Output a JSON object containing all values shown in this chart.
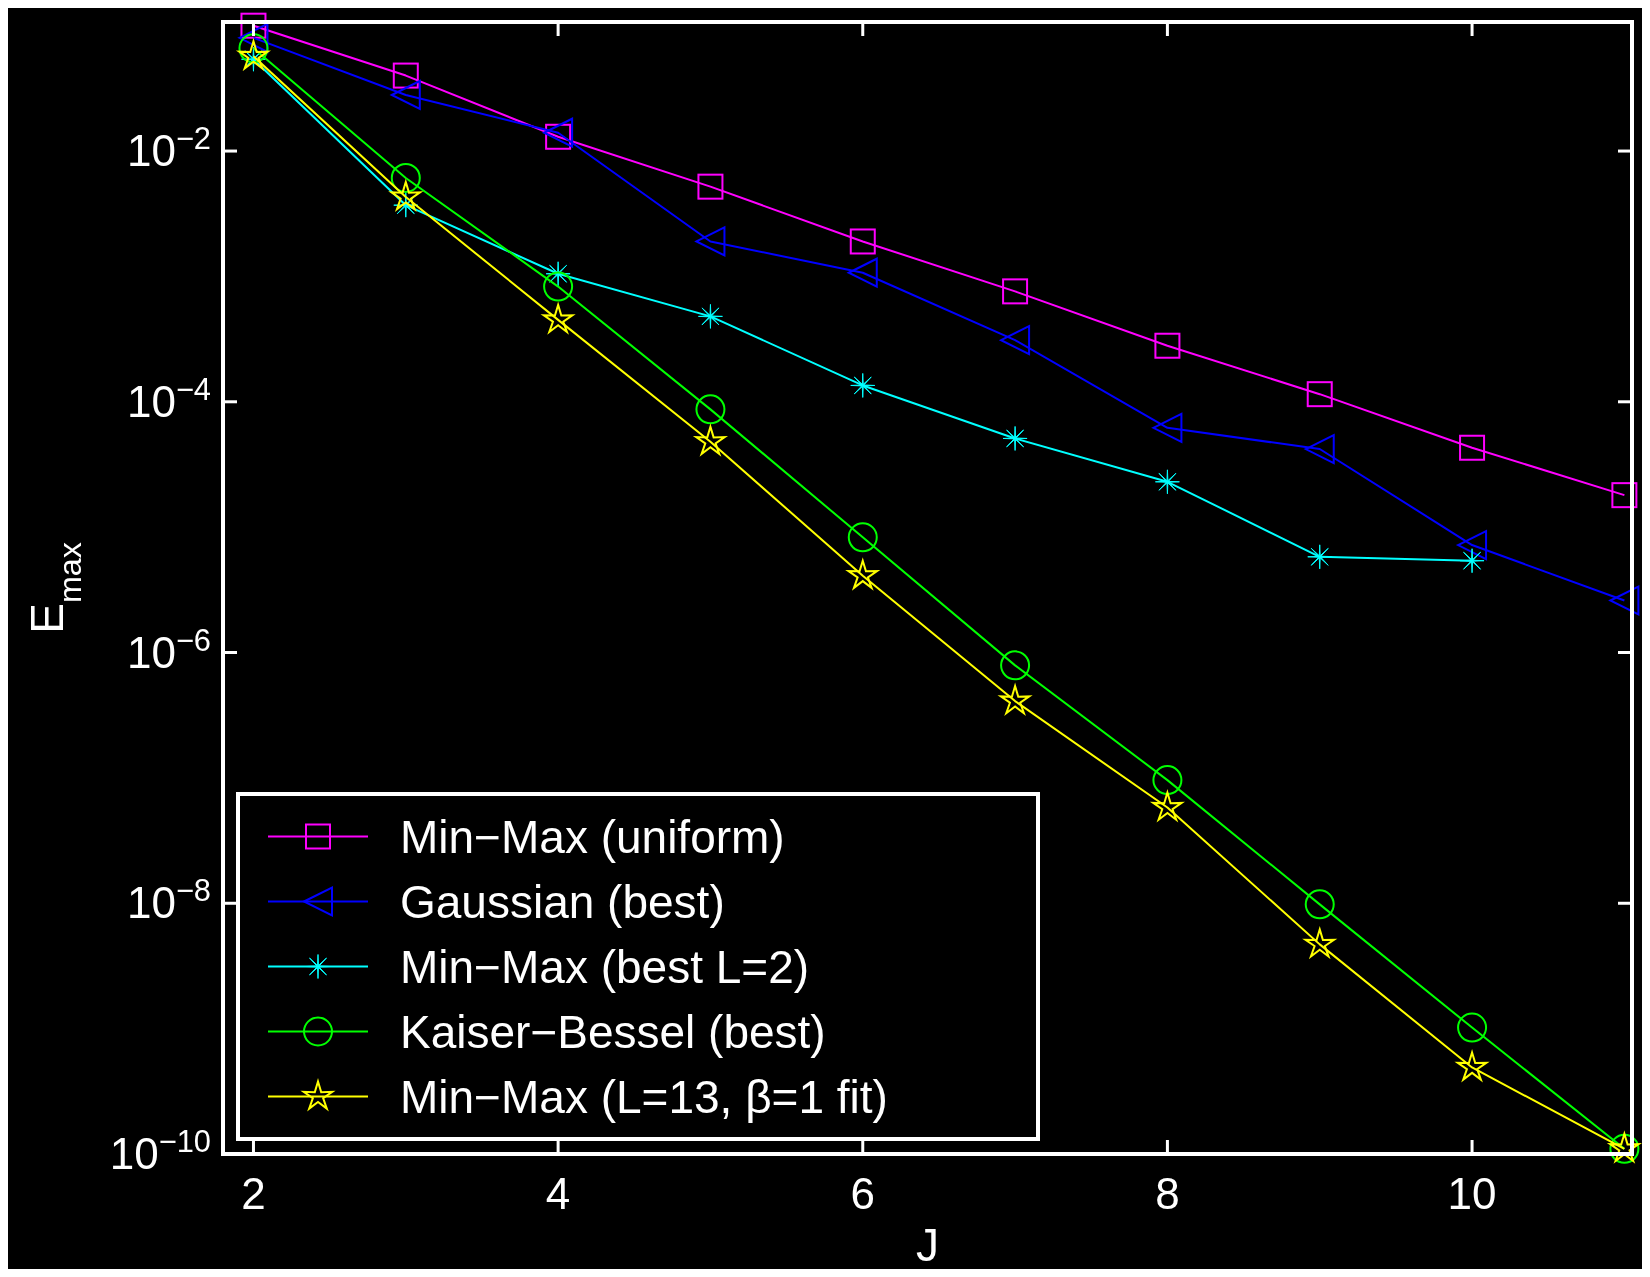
{
  "chart_data": {
    "type": "line",
    "xlabel": "J",
    "ylabel": "E$_{max}$",
    "log": "y",
    "xlim": [
      1.8,
      11.05
    ],
    "ylim": [
      1e-10,
      0.107
    ],
    "xticks": [
      2,
      4,
      6,
      8,
      10
    ],
    "yticks": [
      {
        "value": 1e-10,
        "label": "10$^{−10}$"
      },
      {
        "value": 1e-08,
        "label": "10$^{−8}$"
      },
      {
        "value": 1e-06,
        "label": "10$^{−6}$"
      },
      {
        "value": 0.0001,
        "label": "10$^{−4}$"
      },
      {
        "value": 0.01,
        "label": "10$^{−2}$"
      }
    ],
    "grid": false,
    "legend": "bottom left",
    "x": [
      2,
      3,
      4,
      5,
      6,
      7,
      8,
      9,
      10,
      11
    ],
    "series": [
      {
        "name": "Min−Max (uniform)",
        "color": "#ff00ff",
        "marker": "square",
        "values": [
          0.1,
          0.04,
          0.013,
          0.0052,
          0.0019,
          0.00076,
          0.00028,
          0.000115,
          4.3e-05,
          1.8e-05
        ]
      },
      {
        "name": "Gaussian (best)",
        "color": "#0000ff",
        "marker": "triangle",
        "values": [
          0.08,
          0.028,
          0.014,
          0.0019,
          0.00107,
          0.00031,
          6.2e-05,
          4.2e-05,
          7.2e-06,
          2.6e-06
        ]
      },
      {
        "name": "Min−Max (best L=2)",
        "color": "#00ffff",
        "marker": "cross",
        "values": [
          0.054,
          0.0037,
          0.00105,
          0.00048,
          0.000135,
          5.1e-05,
          2.3e-05,
          5.8e-06,
          5.4e-06,
          null
        ]
      },
      {
        "name": "Kaiser−Bessel (best)",
        "color": "#00ff00",
        "marker": "circle",
        "values": [
          0.066,
          0.0061,
          0.00083,
          8.7e-05,
          8.3e-06,
          7.9e-07,
          9.6e-08,
          9.8e-09,
          1.02e-09,
          1.1e-10
        ]
      },
      {
        "name": "Min−Max (L=13, β=1 fit)",
        "color": "#ffff00",
        "marker": "star",
        "values": [
          0.057,
          0.0043,
          0.00045,
          4.8e-05,
          4.1e-06,
          4.1e-07,
          5.8e-08,
          4.7e-09,
          4.9e-10,
          1.1e-10
        ]
      }
    ]
  }
}
